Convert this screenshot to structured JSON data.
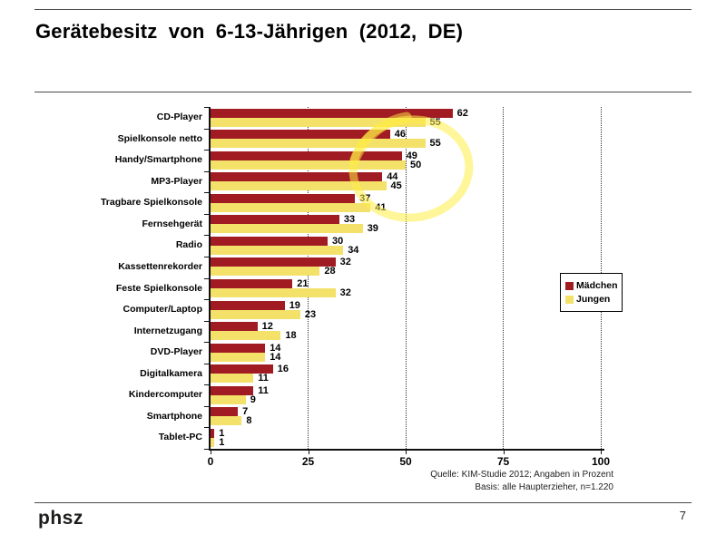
{
  "slide": {
    "title": "Gerätebesitz von 6-13-Jährigen (2012, DE)",
    "page_number": "7",
    "footer_logo": "phsz",
    "source": {
      "line1": "Quelle: KIM-Studie 2012; Angaben in Prozent",
      "line2": "Basis: alle Haupterzieher, n=1.220"
    }
  },
  "chart_data": {
    "type": "bar",
    "orientation": "horizontal",
    "categories": [
      "CD-Player",
      "Spielkonsole netto",
      "Handy/Smartphone",
      "MP3-Player",
      "Tragbare Spielkonsole",
      "Fernsehgerät",
      "Radio",
      "Kassettenrekorder",
      "Feste Spielkonsole",
      "Computer/Laptop",
      "Internetzugang",
      "DVD-Player",
      "Digitalkamera",
      "Kindercomputer",
      "Smartphone",
      "Tablet-PC"
    ],
    "series": [
      {
        "name": "Mädchen",
        "color": "#A11C22",
        "values": [
          62,
          46,
          49,
          44,
          37,
          33,
          30,
          32,
          21,
          19,
          12,
          14,
          16,
          11,
          7,
          1
        ]
      },
      {
        "name": "Jungen",
        "color": "#F3E16A",
        "values": [
          55,
          55,
          50,
          45,
          41,
          39,
          34,
          28,
          32,
          23,
          18,
          14,
          11,
          9,
          8,
          1
        ]
      }
    ],
    "xlim": [
      0,
      100
    ],
    "x_ticks": [
      0,
      25,
      50,
      75,
      100
    ],
    "grid": "dashed-vertical",
    "value_labels": true,
    "legend_position": "right-inside",
    "annotation": {
      "kind": "hand-drawn-ellipse",
      "highlights": "Spielkonsole netto / Handy-Smartphone values",
      "color": "#FFEC45"
    }
  }
}
